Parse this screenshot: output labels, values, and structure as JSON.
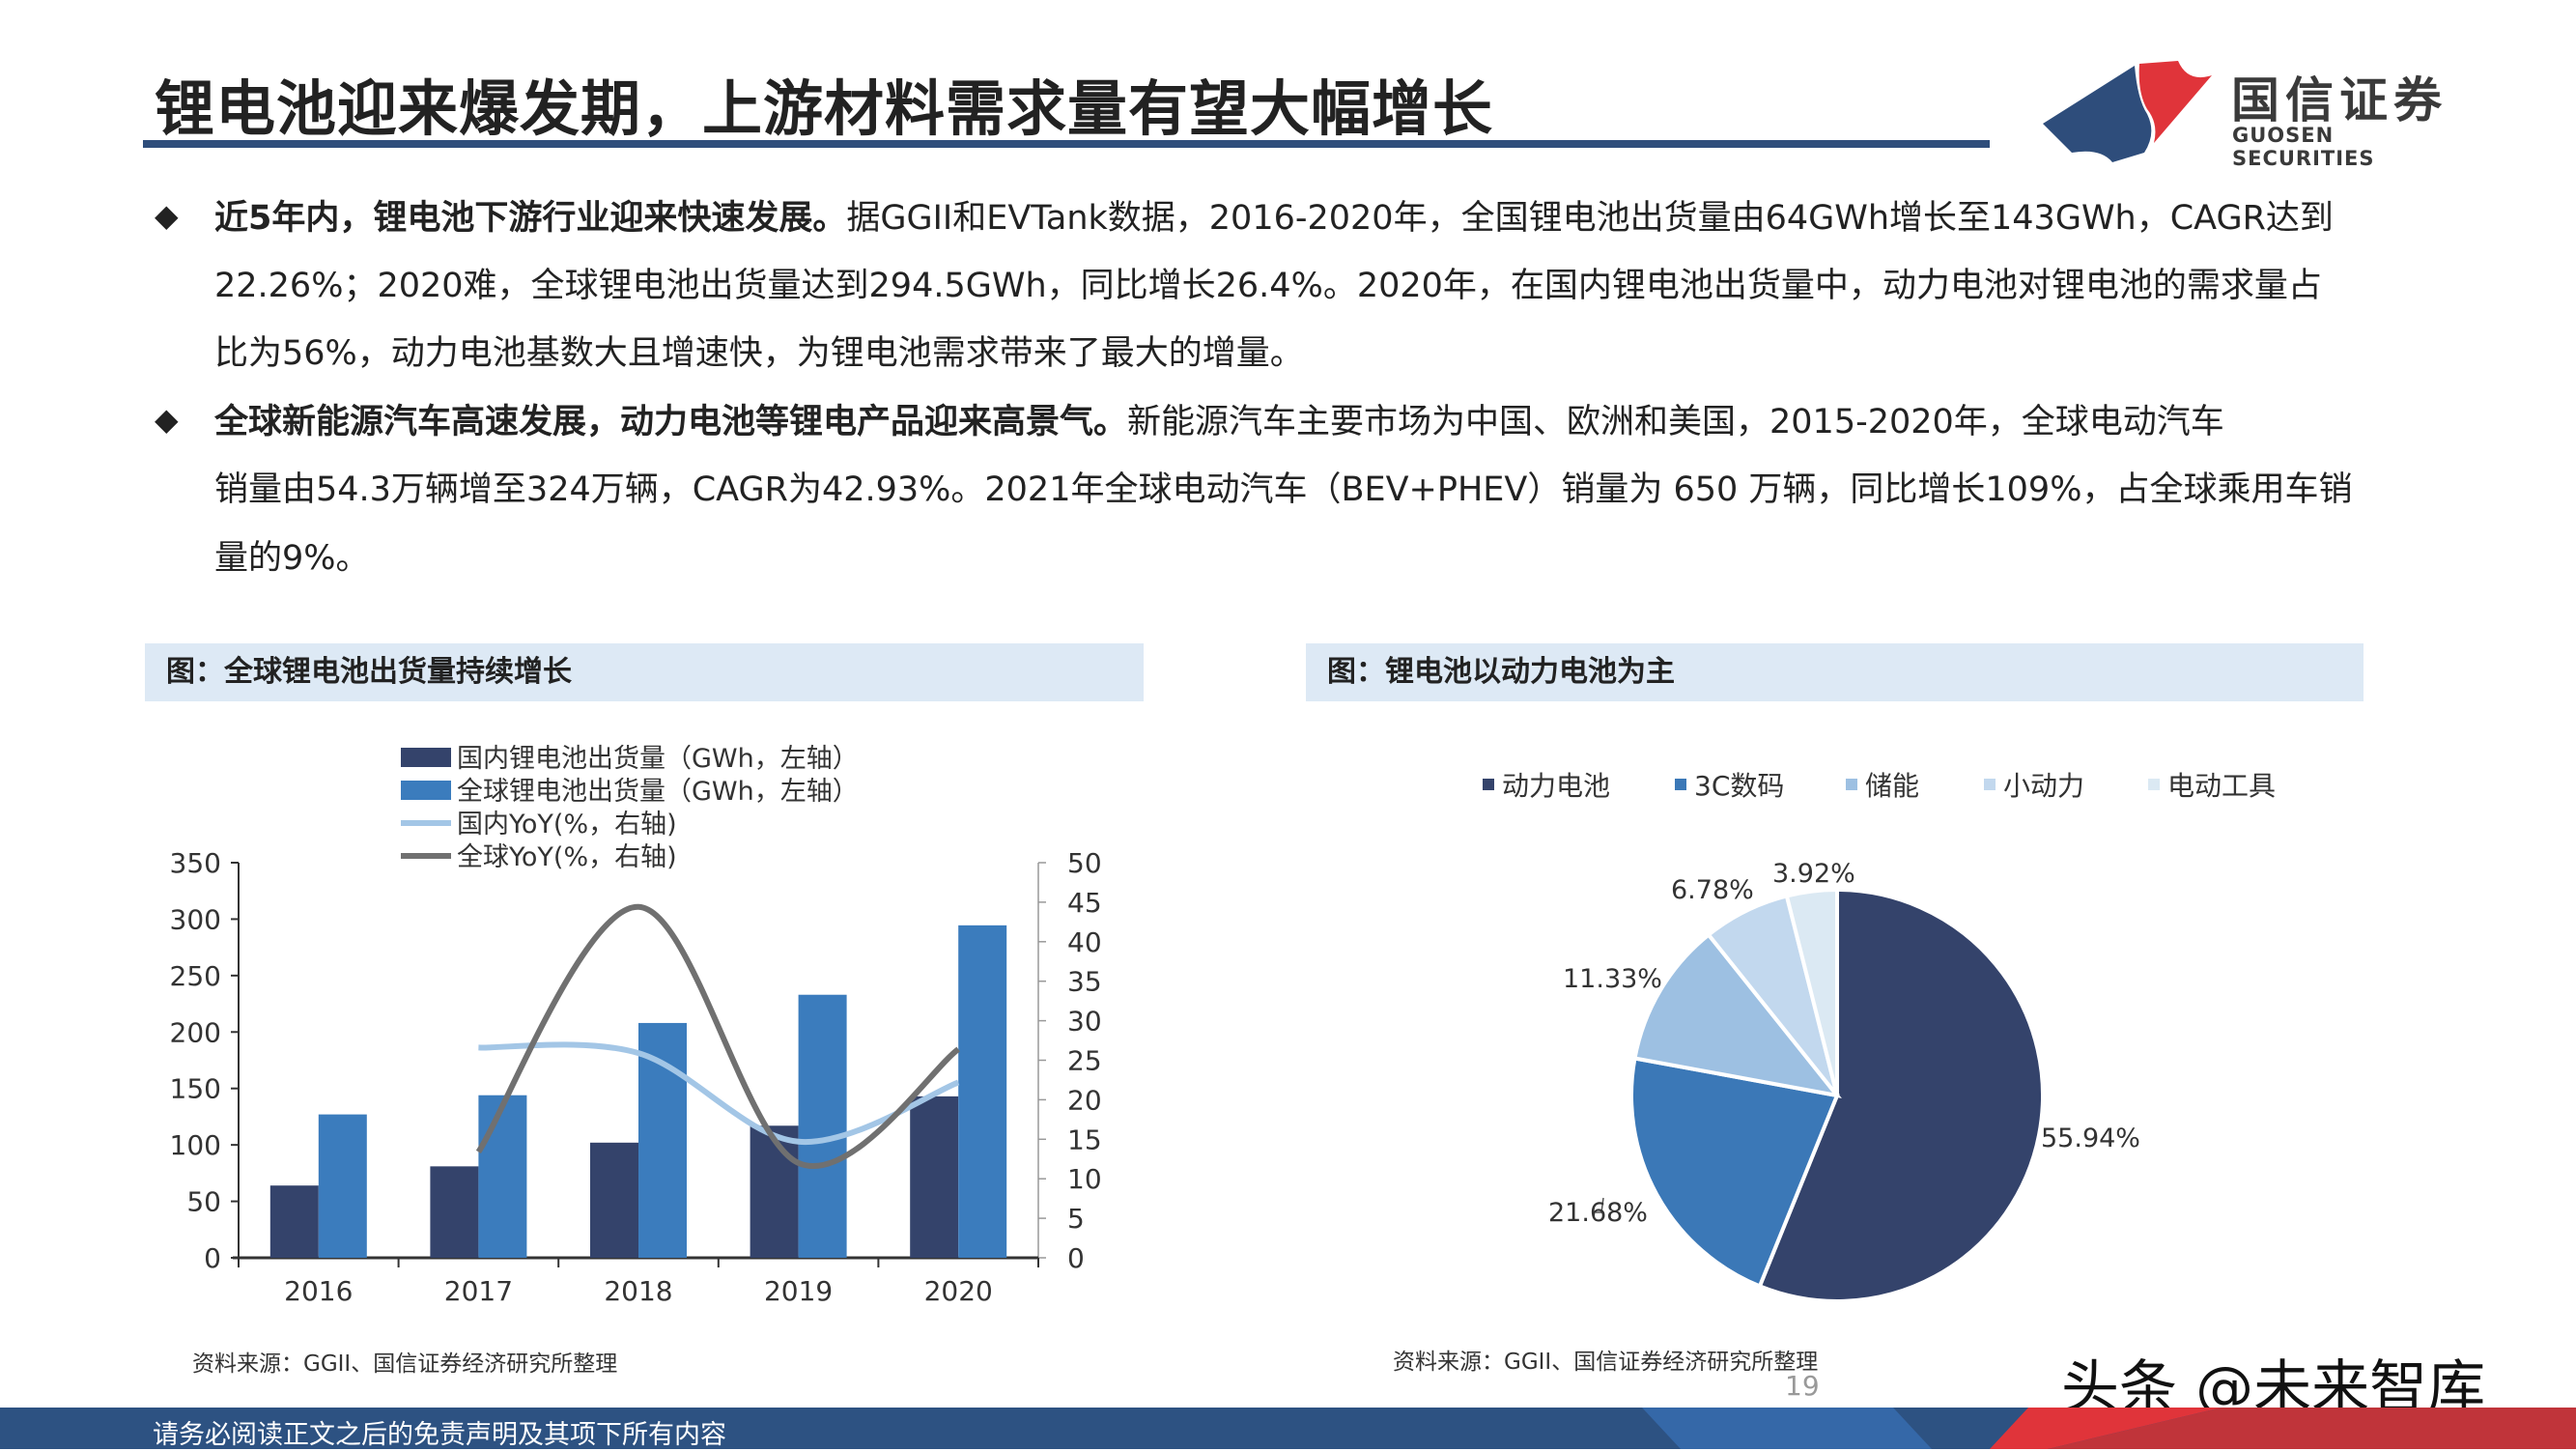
{
  "header": {
    "title": "锂电池迎来爆发期，上游材料需求量有望大幅增长",
    "logo_cn": "国信证券",
    "logo_en": "GUOSEN SECURITIES",
    "colors": {
      "brand_blue": "#2e4d7b",
      "brand_red": "#e0343a"
    }
  },
  "bullets": [
    {
      "bold": "近5年内，锂电池下游行业迎来快速发展。",
      "lines": [
        "据GGII和EVTank数据，2016-2020年，全国锂电池出货量由64GWh增长至143GWh，CAGR达到",
        "22.26%；2020难，全球锂电池出货量达到294.5GWh，同比增长26.4%。2020年，在国内锂电池出货量中，动力电池对锂电池的需求量占",
        "比为56%，动力电池基数大且增速快，为锂电池需求带来了最大的增量。"
      ]
    },
    {
      "bold": "全球新能源汽车高速发展，动力电池等锂电产品迎来高景气。",
      "lines": [
        "新能源汽车主要市场为中国、欧洲和美国，2015-2020年，全球电动汽车",
        "销量由54.3万辆增至324万辆，CAGR为42.93%。2021年全球电动汽车（BEV+PHEV）销量为 650 万辆，同比增长109%，占全球乘用车销",
        "量的9%。"
      ]
    }
  ],
  "left_panel": {
    "heading": "图：全球锂电池出货量持续增长",
    "source": "资料来源：GGII、国信证券经济研究所整理"
  },
  "right_panel": {
    "heading": "图：锂电池以动力电池为主",
    "source": "资料来源：GGII、国信证券经济研究所整理"
  },
  "page_number": "19",
  "watermark": "头条 @未来智库",
  "footer": {
    "text": "请务必阅读正文之后的免责声明及其项下所有内容"
  },
  "chart_data": [
    {
      "type": "bar+line",
      "categories": [
        "2016",
        "2017",
        "2018",
        "2019",
        "2020"
      ],
      "y_left": {
        "lim": [
          0,
          350
        ],
        "ticks": [
          "0",
          "50",
          "100",
          "150",
          "200",
          "250",
          "300",
          "350"
        ]
      },
      "y_right": {
        "lim": [
          0,
          50
        ],
        "ticks": [
          "0",
          "5",
          "10",
          "15",
          "20",
          "25",
          "30",
          "35",
          "40",
          "45",
          "50"
        ]
      },
      "legend_placement": "top",
      "series": [
        {
          "name": "国内锂电池出货量（GWh，左轴）",
          "kind": "bar",
          "axis": "left",
          "color": "#34436b",
          "values": [
            64,
            81,
            102,
            117,
            143
          ]
        },
        {
          "name": "全球锂电池出货量（GWh，左轴）",
          "kind": "bar",
          "axis": "left",
          "color": "#3b7cbd",
          "values": [
            127,
            144,
            208,
            233,
            294.5
          ]
        },
        {
          "name": "国内YoY(%，右轴)",
          "kind": "line",
          "axis": "right",
          "color": "#a3c6e6",
          "values": [
            null,
            26.6,
            25.9,
            14.7,
            22.2
          ]
        },
        {
          "name": "全球YoY(%，右轴)",
          "kind": "line",
          "axis": "right",
          "color": "#707070",
          "values": [
            null,
            13.4,
            44.4,
            12.0,
            26.4
          ]
        }
      ]
    },
    {
      "type": "pie",
      "start": "12 o'clock, clockwise",
      "legend_placement": "top",
      "slices": [
        {
          "name": "动力电池",
          "value": 55.94,
          "label": "55.94%",
          "color": "#34436b"
        },
        {
          "name": "3C数码",
          "value": 21.68,
          "label": "21.68%",
          "color": "#3b78b7"
        },
        {
          "name": "储能",
          "value": 11.33,
          "label": "11.33%",
          "color": "#9dc0e2"
        },
        {
          "name": "小动力",
          "value": 6.78,
          "label": "6.78%",
          "color": "#c2d8ee"
        },
        {
          "name": "电动工具",
          "value": 3.92,
          "label": "3.92%",
          "color": "#dbe9f3"
        }
      ]
    }
  ]
}
